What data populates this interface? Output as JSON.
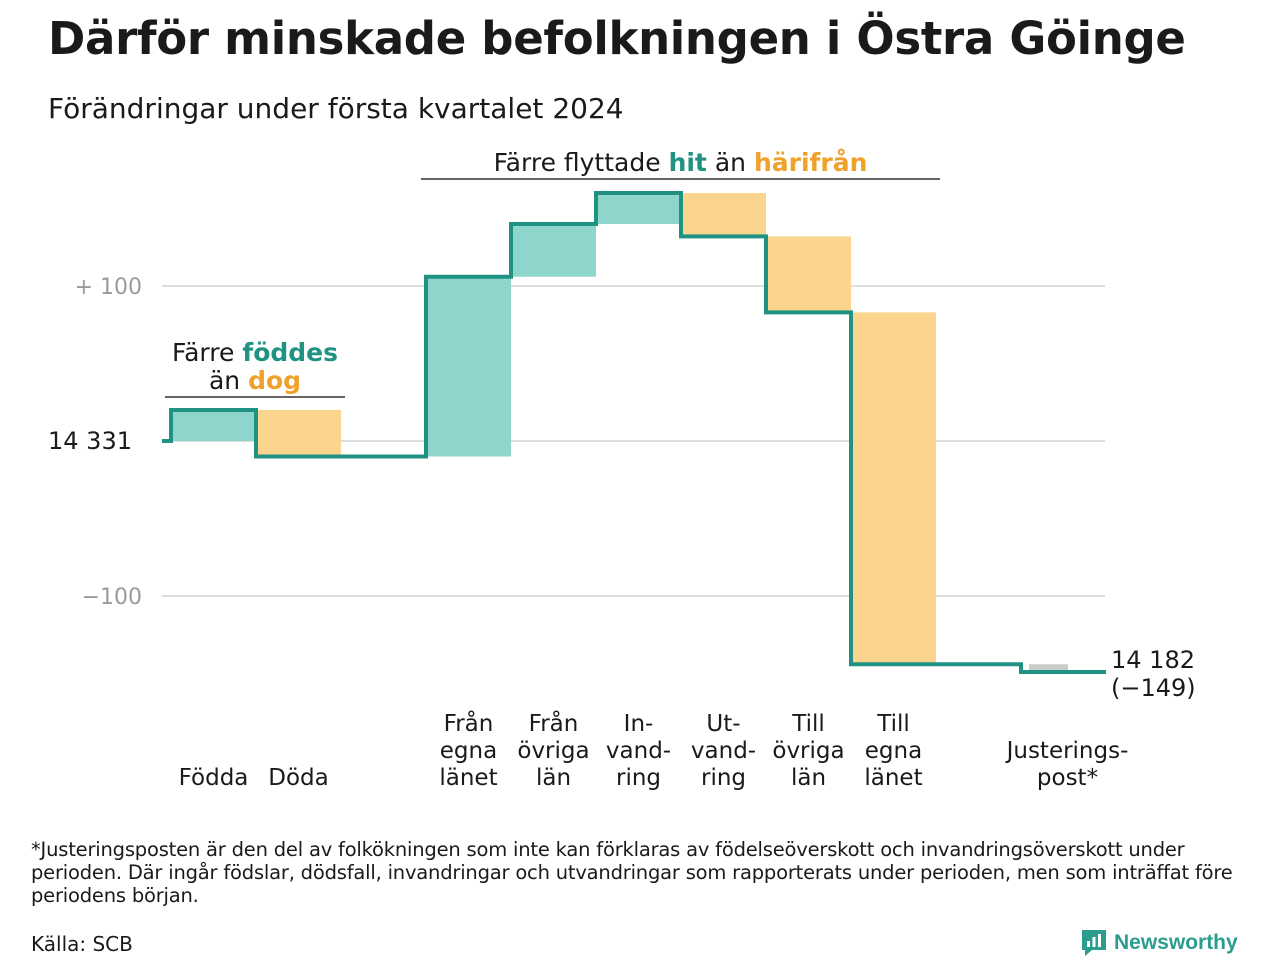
{
  "header": {
    "title": "Därför minskade befolkningen i Östra Göinge",
    "subtitle": "Förändringar under första kvartalet 2024"
  },
  "colors": {
    "increase": "#8ed6cb",
    "decrease": "#fbd58e",
    "adjustment": "#cccccc",
    "line": "#1f9284",
    "hit": "#1f9284",
    "harifran": "#f0a12a",
    "grid": "#dedede",
    "axis_label": "#9a9a9a"
  },
  "chart_data": {
    "type": "bar",
    "subtype": "waterfall",
    "start_value": 14331,
    "start_label": "14  331",
    "end_value": 14182,
    "end_label": "14 182",
    "end_change_label": "(−149)",
    "y_ticks": [
      {
        "value": 100,
        "label": "+  100"
      },
      {
        "value": 0,
        "label": ""
      },
      {
        "value": -100,
        "label": "−100"
      }
    ],
    "ylim": [
      -160,
      165
    ],
    "grid": true,
    "steps": [
      {
        "category": [
          "Födda"
        ],
        "change": 20,
        "kind": "increase"
      },
      {
        "category": [
          "Döda"
        ],
        "change": -30,
        "kind": "decrease"
      },
      {
        "category": [],
        "change": 0,
        "kind": "gap"
      },
      {
        "category": [
          "Från",
          "egna",
          "länet"
        ],
        "change": 116,
        "kind": "increase"
      },
      {
        "category": [
          "Från",
          "övriga",
          "län"
        ],
        "change": 34,
        "kind": "increase"
      },
      {
        "category": [
          "In-",
          "vand-",
          "ring"
        ],
        "change": 20,
        "kind": "increase"
      },
      {
        "category": [
          "Ut-",
          "vand-",
          "ring"
        ],
        "change": -28,
        "kind": "decrease"
      },
      {
        "category": [
          "Till",
          "övriga",
          "län"
        ],
        "change": -49,
        "kind": "decrease"
      },
      {
        "category": [
          "Till",
          "egna",
          "länet"
        ],
        "change": -227,
        "kind": "decrease"
      },
      {
        "category": [],
        "change": 0,
        "kind": "gap"
      },
      {
        "category": [
          "Justerings-",
          "post*"
        ],
        "change": -5,
        "kind": "adjustment"
      }
    ],
    "annotations": [
      {
        "group": [
          0,
          1
        ],
        "parts": [
          {
            "line": 0,
            "text": "Färre ",
            "style": "plain"
          },
          {
            "line": 0,
            "text": "föddes",
            "style": "increase"
          },
          {
            "line": 1,
            "text": "än ",
            "style": "plain"
          },
          {
            "line": 1,
            "text": "dog",
            "style": "decrease"
          }
        ]
      },
      {
        "group": [
          3,
          8
        ],
        "parts": [
          {
            "line": 0,
            "text": "Färre flyttade ",
            "style": "plain"
          },
          {
            "line": 0,
            "text": "hit",
            "style": "increase"
          },
          {
            "line": 0,
            "text": " än ",
            "style": "plain"
          },
          {
            "line": 0,
            "text": "härifrån",
            "style": "decrease"
          }
        ]
      }
    ]
  },
  "footer": {
    "footnote": "*Justeringsposten är den del av folkökningen som inte kan förklaras av födelseöverskott och invandringsöverskott under perioden. Där ingår födslar, dödsfall, invandringar och utvandringar som rapporterats under perioden, men som inträffat före periodens början.",
    "source": "Källa: SCB",
    "logo_text": "Newsworthy",
    "logo_icon": "newsworthy-logo-icon"
  }
}
